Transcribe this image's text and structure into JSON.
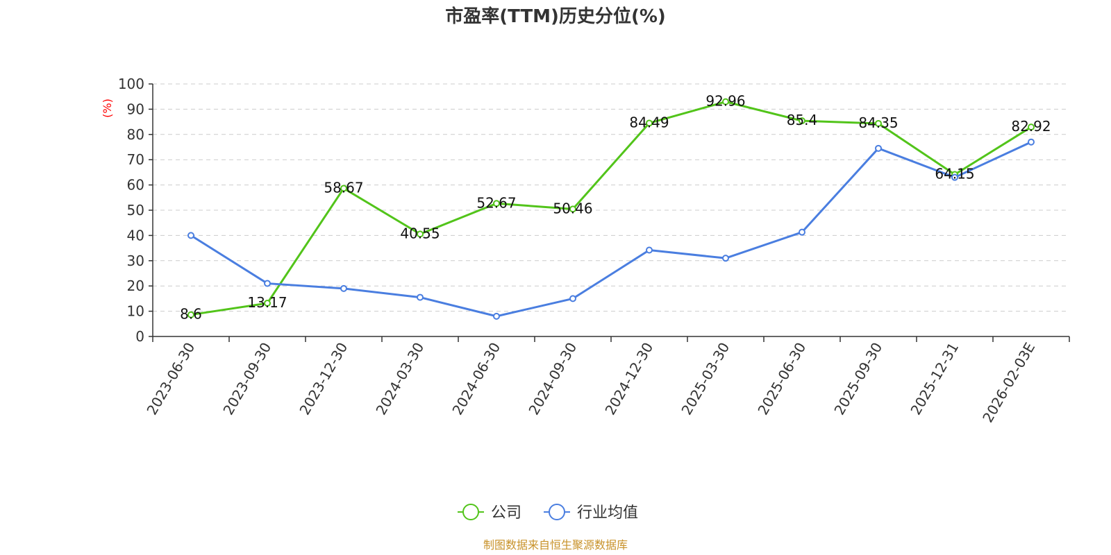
{
  "chart_data": {
    "type": "line",
    "title": "市盈率(TTM)历史分位(%)",
    "ylabel": "(%)",
    "xlabel": "",
    "ylim": [
      0,
      100
    ],
    "yticks": [
      0,
      10,
      20,
      30,
      40,
      50,
      60,
      70,
      80,
      90,
      100
    ],
    "grid": true,
    "legend_position": "bottom",
    "categories": [
      "2023-06-30",
      "2023-09-30",
      "2023-12-30",
      "2024-03-30",
      "2024-06-30",
      "2024-09-30",
      "2024-12-30",
      "2025-03-30",
      "2025-06-30",
      "2025-09-30",
      "2025-12-31",
      "2026-02-03E"
    ],
    "series": [
      {
        "name": "公司",
        "color": "#52c41a",
        "values": [
          8.6,
          13.17,
          58.67,
          40.55,
          52.67,
          50.46,
          84.49,
          92.96,
          85.4,
          84.35,
          64.15,
          82.92
        ],
        "data_labels": [
          "8.6",
          "13.17",
          "58.67",
          "40.55",
          "52.67",
          "50.46",
          "84.49",
          "92.96",
          "85.4",
          "84.35",
          "64.15",
          "82.92"
        ]
      },
      {
        "name": "行业均值",
        "color": "#4a7ee0",
        "values": [
          40,
          21,
          19,
          15.5,
          8,
          15,
          34.2,
          31,
          41.3,
          74.5,
          63,
          77
        ]
      }
    ]
  },
  "source_text": "制图数据来自恒生聚源数据库"
}
